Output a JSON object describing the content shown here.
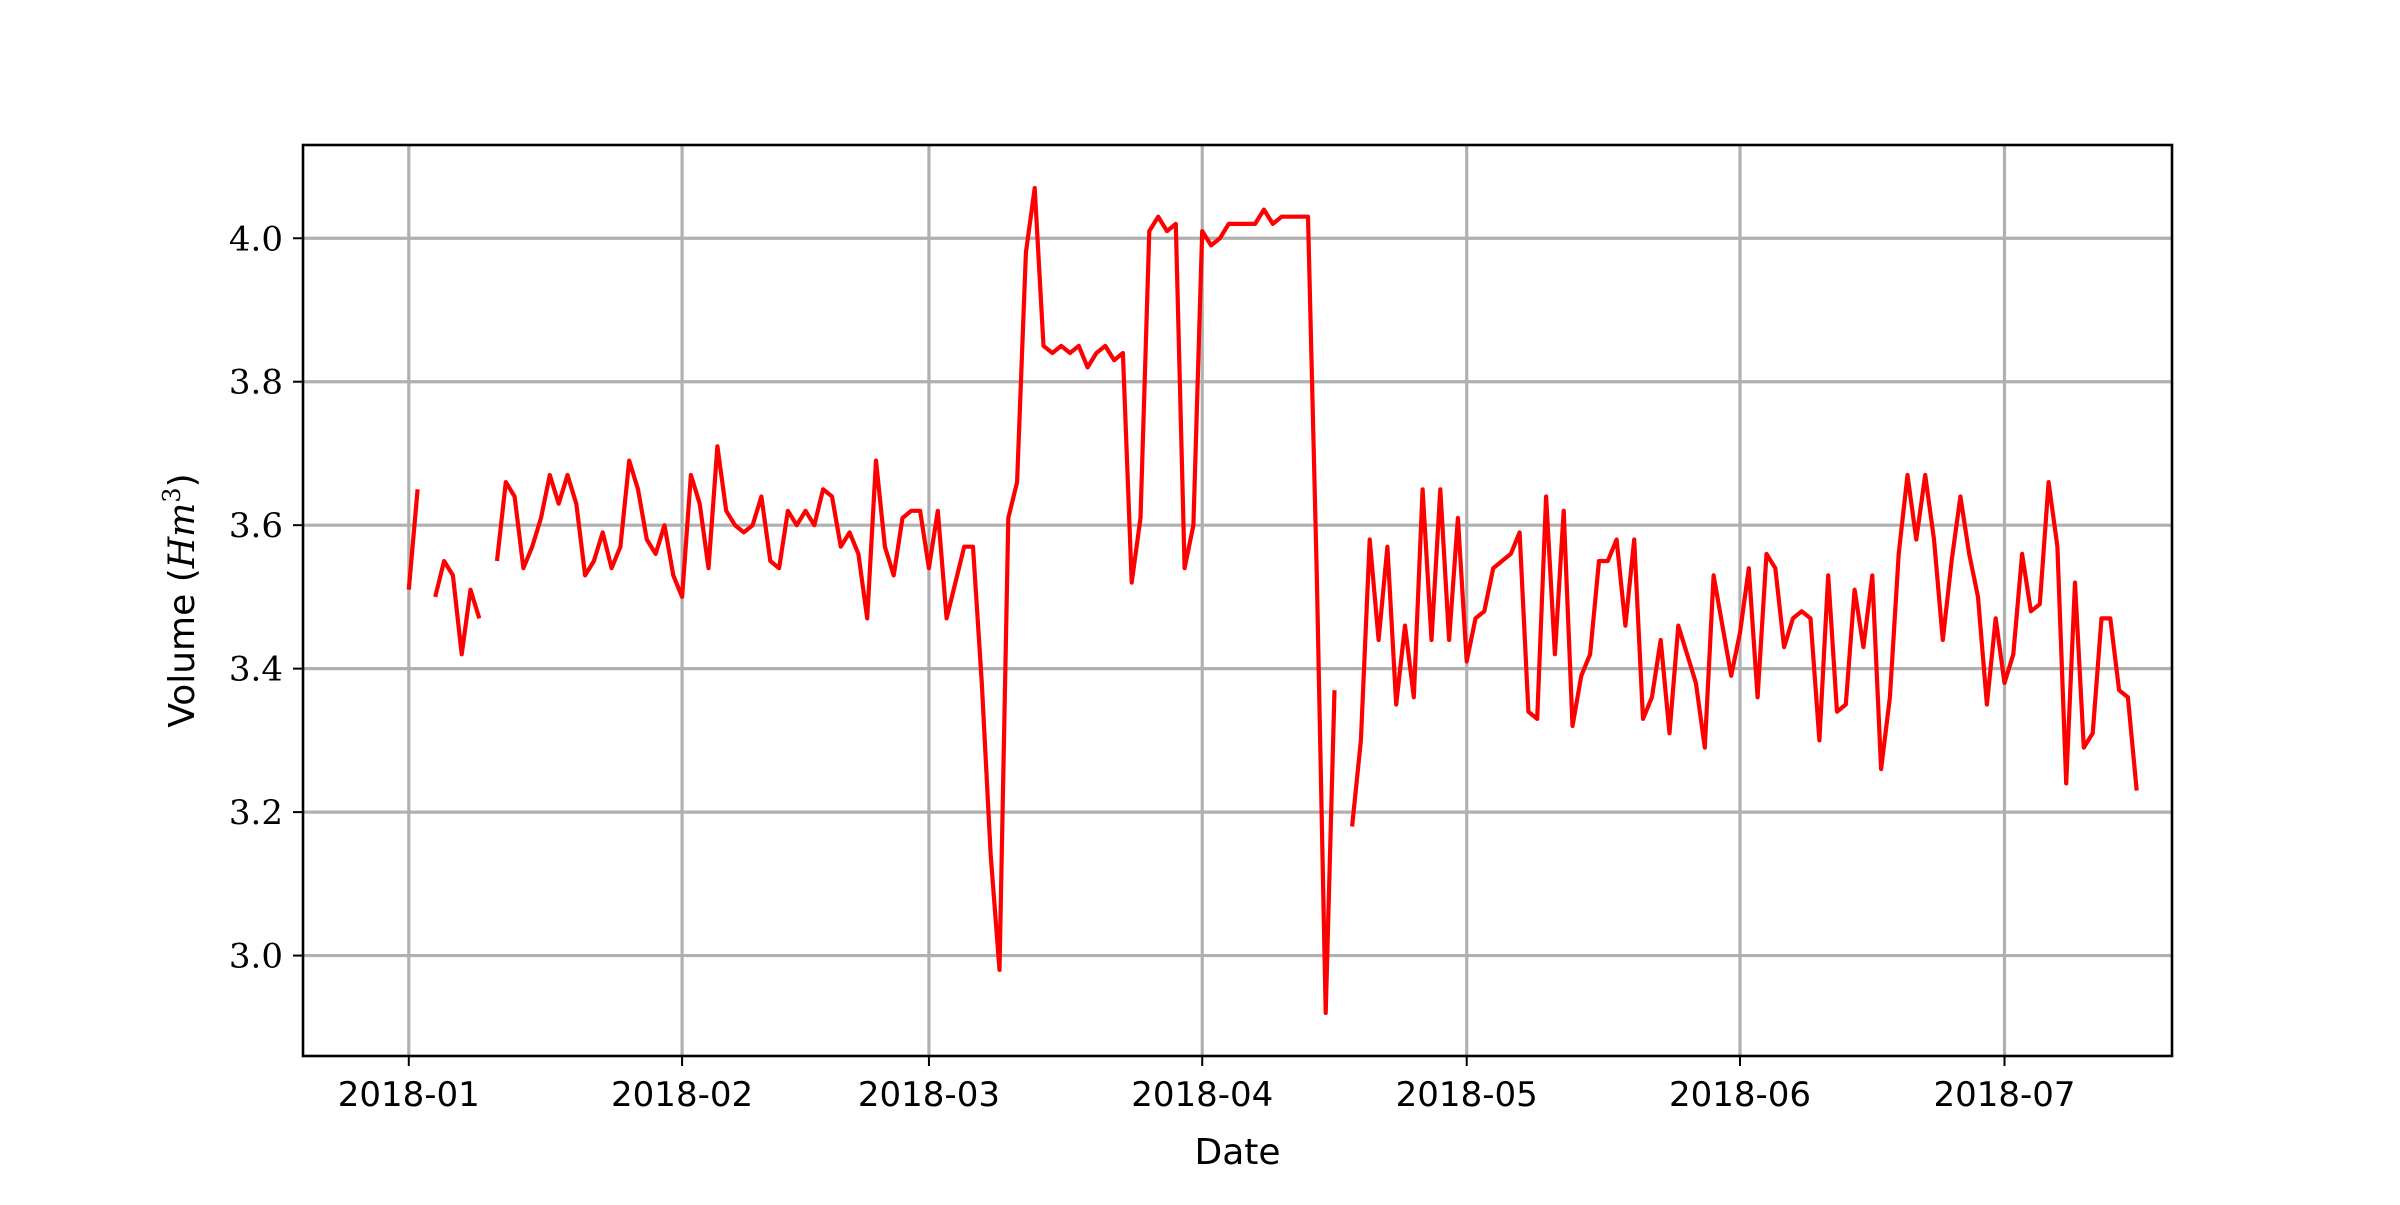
{
  "chart_data": {
    "type": "line",
    "title": "",
    "xlabel": "Date",
    "ylabel": "Volume ",
    "ylabel_unit": "(Hm3)",
    "ylabel_base": "Hm",
    "ylabel_exponent": "3",
    "xlim": [
      "2017-12-20",
      "2018-07-20"
    ],
    "ylim": [
      2.86,
      4.13
    ],
    "grid": true,
    "x_ticks": [
      "2018-01-01",
      "2018-02-01",
      "2018-03-01",
      "2018-04-01",
      "2018-05-01",
      "2018-06-01",
      "2018-07-01"
    ],
    "x_tick_labels": [
      "2018-01",
      "2018-02",
      "2018-03",
      "2018-04",
      "2018-05",
      "2018-06",
      "2018-07"
    ],
    "y_ticks": [
      3.0,
      3.2,
      3.4,
      3.6,
      3.8,
      4.0
    ],
    "y_tick_labels": [
      "3.0",
      "3.2",
      "3.4",
      "3.6",
      "3.8",
      "4.0"
    ],
    "series": [
      {
        "color": "#ff0000",
        "segments": [
          [
            [
              "2018-01-01",
              3.51
            ],
            [
              "2018-01-02",
              3.65
            ]
          ],
          [
            [
              "2018-01-04",
              3.5
            ],
            [
              "2018-01-05",
              3.55
            ],
            [
              "2018-01-06",
              3.53
            ],
            [
              "2018-01-07",
              3.42
            ],
            [
              "2018-01-08",
              3.51
            ],
            [
              "2018-01-09",
              3.47
            ]
          ],
          [
            [
              "2018-01-11",
              3.55
            ],
            [
              "2018-01-12",
              3.66
            ],
            [
              "2018-01-13",
              3.64
            ],
            [
              "2018-01-14",
              3.54
            ],
            [
              "2018-01-15",
              3.57
            ],
            [
              "2018-01-16",
              3.61
            ],
            [
              "2018-01-17",
              3.67
            ],
            [
              "2018-01-18",
              3.63
            ],
            [
              "2018-01-19",
              3.67
            ],
            [
              "2018-01-20",
              3.63
            ],
            [
              "2018-01-21",
              3.53
            ],
            [
              "2018-01-22",
              3.55
            ],
            [
              "2018-01-23",
              3.59
            ],
            [
              "2018-01-24",
              3.54
            ],
            [
              "2018-01-25",
              3.57
            ],
            [
              "2018-01-26",
              3.69
            ],
            [
              "2018-01-27",
              3.65
            ],
            [
              "2018-01-28",
              3.58
            ],
            [
              "2018-01-29",
              3.56
            ],
            [
              "2018-01-30",
              3.6
            ],
            [
              "2018-01-31",
              3.53
            ],
            [
              "2018-02-01",
              3.5
            ],
            [
              "2018-02-02",
              3.67
            ],
            [
              "2018-02-03",
              3.63
            ],
            [
              "2018-02-04",
              3.54
            ],
            [
              "2018-02-05",
              3.71
            ],
            [
              "2018-02-06",
              3.62
            ],
            [
              "2018-02-07",
              3.6
            ],
            [
              "2018-02-08",
              3.59
            ],
            [
              "2018-02-09",
              3.6
            ],
            [
              "2018-02-10",
              3.64
            ],
            [
              "2018-02-11",
              3.55
            ],
            [
              "2018-02-12",
              3.54
            ],
            [
              "2018-02-13",
              3.62
            ],
            [
              "2018-02-14",
              3.6
            ],
            [
              "2018-02-15",
              3.62
            ],
            [
              "2018-02-16",
              3.6
            ],
            [
              "2018-02-17",
              3.65
            ],
            [
              "2018-02-18",
              3.64
            ],
            [
              "2018-02-19",
              3.57
            ],
            [
              "2018-02-20",
              3.59
            ],
            [
              "2018-02-21",
              3.56
            ],
            [
              "2018-02-22",
              3.47
            ],
            [
              "2018-02-23",
              3.69
            ],
            [
              "2018-02-24",
              3.57
            ],
            [
              "2018-02-25",
              3.53
            ],
            [
              "2018-02-26",
              3.61
            ],
            [
              "2018-02-27",
              3.62
            ],
            [
              "2018-02-28",
              3.62
            ],
            [
              "2018-03-01",
              3.54
            ],
            [
              "2018-03-02",
              3.62
            ],
            [
              "2018-03-03",
              3.47
            ],
            [
              "2018-03-04",
              3.52
            ],
            [
              "2018-03-05",
              3.57
            ],
            [
              "2018-03-06",
              3.57
            ],
            [
              "2018-03-07",
              3.38
            ],
            [
              "2018-03-08",
              3.14
            ],
            [
              "2018-03-09",
              2.98
            ],
            [
              "2018-03-10",
              3.61
            ],
            [
              "2018-03-11",
              3.66
            ],
            [
              "2018-03-12",
              3.98
            ],
            [
              "2018-03-13",
              4.07
            ],
            [
              "2018-03-14",
              3.85
            ],
            [
              "2018-03-15",
              3.84
            ],
            [
              "2018-03-16",
              3.85
            ],
            [
              "2018-03-17",
              3.84
            ],
            [
              "2018-03-18",
              3.85
            ],
            [
              "2018-03-19",
              3.82
            ],
            [
              "2018-03-20",
              3.84
            ],
            [
              "2018-03-21",
              3.85
            ],
            [
              "2018-03-22",
              3.83
            ],
            [
              "2018-03-23",
              3.84
            ],
            [
              "2018-03-24",
              3.52
            ],
            [
              "2018-03-25",
              3.61
            ],
            [
              "2018-03-26",
              4.01
            ],
            [
              "2018-03-27",
              4.03
            ],
            [
              "2018-03-28",
              4.01
            ],
            [
              "2018-03-29",
              4.02
            ],
            [
              "2018-03-30",
              3.54
            ],
            [
              "2018-03-31",
              3.6
            ],
            [
              "2018-04-01",
              4.01
            ],
            [
              "2018-04-02",
              3.99
            ],
            [
              "2018-04-03",
              4.0
            ],
            [
              "2018-04-04",
              4.02
            ],
            [
              "2018-04-05",
              4.02
            ],
            [
              "2018-04-06",
              4.02
            ],
            [
              "2018-04-07",
              4.02
            ],
            [
              "2018-04-08",
              4.04
            ],
            [
              "2018-04-09",
              4.02
            ],
            [
              "2018-04-10",
              4.03
            ],
            [
              "2018-04-11",
              4.03
            ],
            [
              "2018-04-12",
              4.03
            ],
            [
              "2018-04-13",
              4.03
            ],
            [
              "2018-04-14",
              3.53
            ],
            [
              "2018-04-15",
              2.92
            ],
            [
              "2018-04-16",
              3.37
            ]
          ],
          [
            [
              "2018-04-18",
              3.18
            ],
            [
              "2018-04-19",
              3.3
            ],
            [
              "2018-04-20",
              3.58
            ],
            [
              "2018-04-21",
              3.44
            ],
            [
              "2018-04-22",
              3.57
            ],
            [
              "2018-04-23",
              3.35
            ],
            [
              "2018-04-24",
              3.46
            ],
            [
              "2018-04-25",
              3.36
            ],
            [
              "2018-04-26",
              3.65
            ],
            [
              "2018-04-27",
              3.44
            ],
            [
              "2018-04-28",
              3.65
            ],
            [
              "2018-04-29",
              3.44
            ],
            [
              "2018-04-30",
              3.61
            ],
            [
              "2018-05-01",
              3.41
            ],
            [
              "2018-05-02",
              3.47
            ],
            [
              "2018-05-03",
              3.48
            ],
            [
              "2018-05-04",
              3.54
            ],
            [
              "2018-05-05",
              3.55
            ],
            [
              "2018-05-06",
              3.56
            ],
            [
              "2018-05-07",
              3.59
            ],
            [
              "2018-05-08",
              3.34
            ],
            [
              "2018-05-09",
              3.33
            ],
            [
              "2018-05-10",
              3.64
            ],
            [
              "2018-05-11",
              3.42
            ],
            [
              "2018-05-12",
              3.62
            ],
            [
              "2018-05-13",
              3.32
            ],
            [
              "2018-05-14",
              3.39
            ],
            [
              "2018-05-15",
              3.42
            ],
            [
              "2018-05-16",
              3.55
            ],
            [
              "2018-05-17",
              3.55
            ],
            [
              "2018-05-18",
              3.58
            ],
            [
              "2018-05-19",
              3.46
            ],
            [
              "2018-05-20",
              3.58
            ],
            [
              "2018-05-21",
              3.33
            ],
            [
              "2018-05-22",
              3.36
            ],
            [
              "2018-05-23",
              3.44
            ],
            [
              "2018-05-24",
              3.31
            ],
            [
              "2018-05-25",
              3.46
            ],
            [
              "2018-05-26",
              3.42
            ],
            [
              "2018-05-27",
              3.38
            ],
            [
              "2018-05-28",
              3.29
            ],
            [
              "2018-05-29",
              3.53
            ],
            [
              "2018-05-30",
              3.46
            ],
            [
              "2018-05-31",
              3.39
            ],
            [
              "2018-06-01",
              3.45
            ],
            [
              "2018-06-02",
              3.54
            ],
            [
              "2018-06-03",
              3.36
            ],
            [
              "2018-06-04",
              3.56
            ],
            [
              "2018-06-05",
              3.54
            ],
            [
              "2018-06-06",
              3.43
            ],
            [
              "2018-06-07",
              3.47
            ],
            [
              "2018-06-08",
              3.48
            ],
            [
              "2018-06-09",
              3.47
            ],
            [
              "2018-06-10",
              3.3
            ],
            [
              "2018-06-11",
              3.53
            ],
            [
              "2018-06-12",
              3.34
            ],
            [
              "2018-06-13",
              3.35
            ],
            [
              "2018-06-14",
              3.51
            ],
            [
              "2018-06-15",
              3.43
            ],
            [
              "2018-06-16",
              3.53
            ],
            [
              "2018-06-17",
              3.26
            ],
            [
              "2018-06-18",
              3.36
            ],
            [
              "2018-06-19",
              3.56
            ],
            [
              "2018-06-20",
              3.67
            ],
            [
              "2018-06-21",
              3.58
            ],
            [
              "2018-06-22",
              3.67
            ],
            [
              "2018-06-23",
              3.58
            ],
            [
              "2018-06-24",
              3.44
            ],
            [
              "2018-06-25",
              3.55
            ],
            [
              "2018-06-26",
              3.64
            ],
            [
              "2018-06-27",
              3.56
            ],
            [
              "2018-06-28",
              3.5
            ],
            [
              "2018-06-29",
              3.35
            ],
            [
              "2018-06-30",
              3.47
            ],
            [
              "2018-07-01",
              3.38
            ],
            [
              "2018-07-02",
              3.42
            ],
            [
              "2018-07-03",
              3.56
            ],
            [
              "2018-07-04",
              3.48
            ],
            [
              "2018-07-05",
              3.49
            ],
            [
              "2018-07-06",
              3.66
            ],
            [
              "2018-07-07",
              3.57
            ],
            [
              "2018-07-08",
              3.24
            ],
            [
              "2018-07-09",
              3.52
            ],
            [
              "2018-07-10",
              3.29
            ],
            [
              "2018-07-11",
              3.31
            ],
            [
              "2018-07-12",
              3.47
            ],
            [
              "2018-07-13",
              3.47
            ],
            [
              "2018-07-14",
              3.37
            ],
            [
              "2018-07-15",
              3.36
            ],
            [
              "2018-07-16",
              3.23
            ]
          ]
        ]
      }
    ]
  }
}
